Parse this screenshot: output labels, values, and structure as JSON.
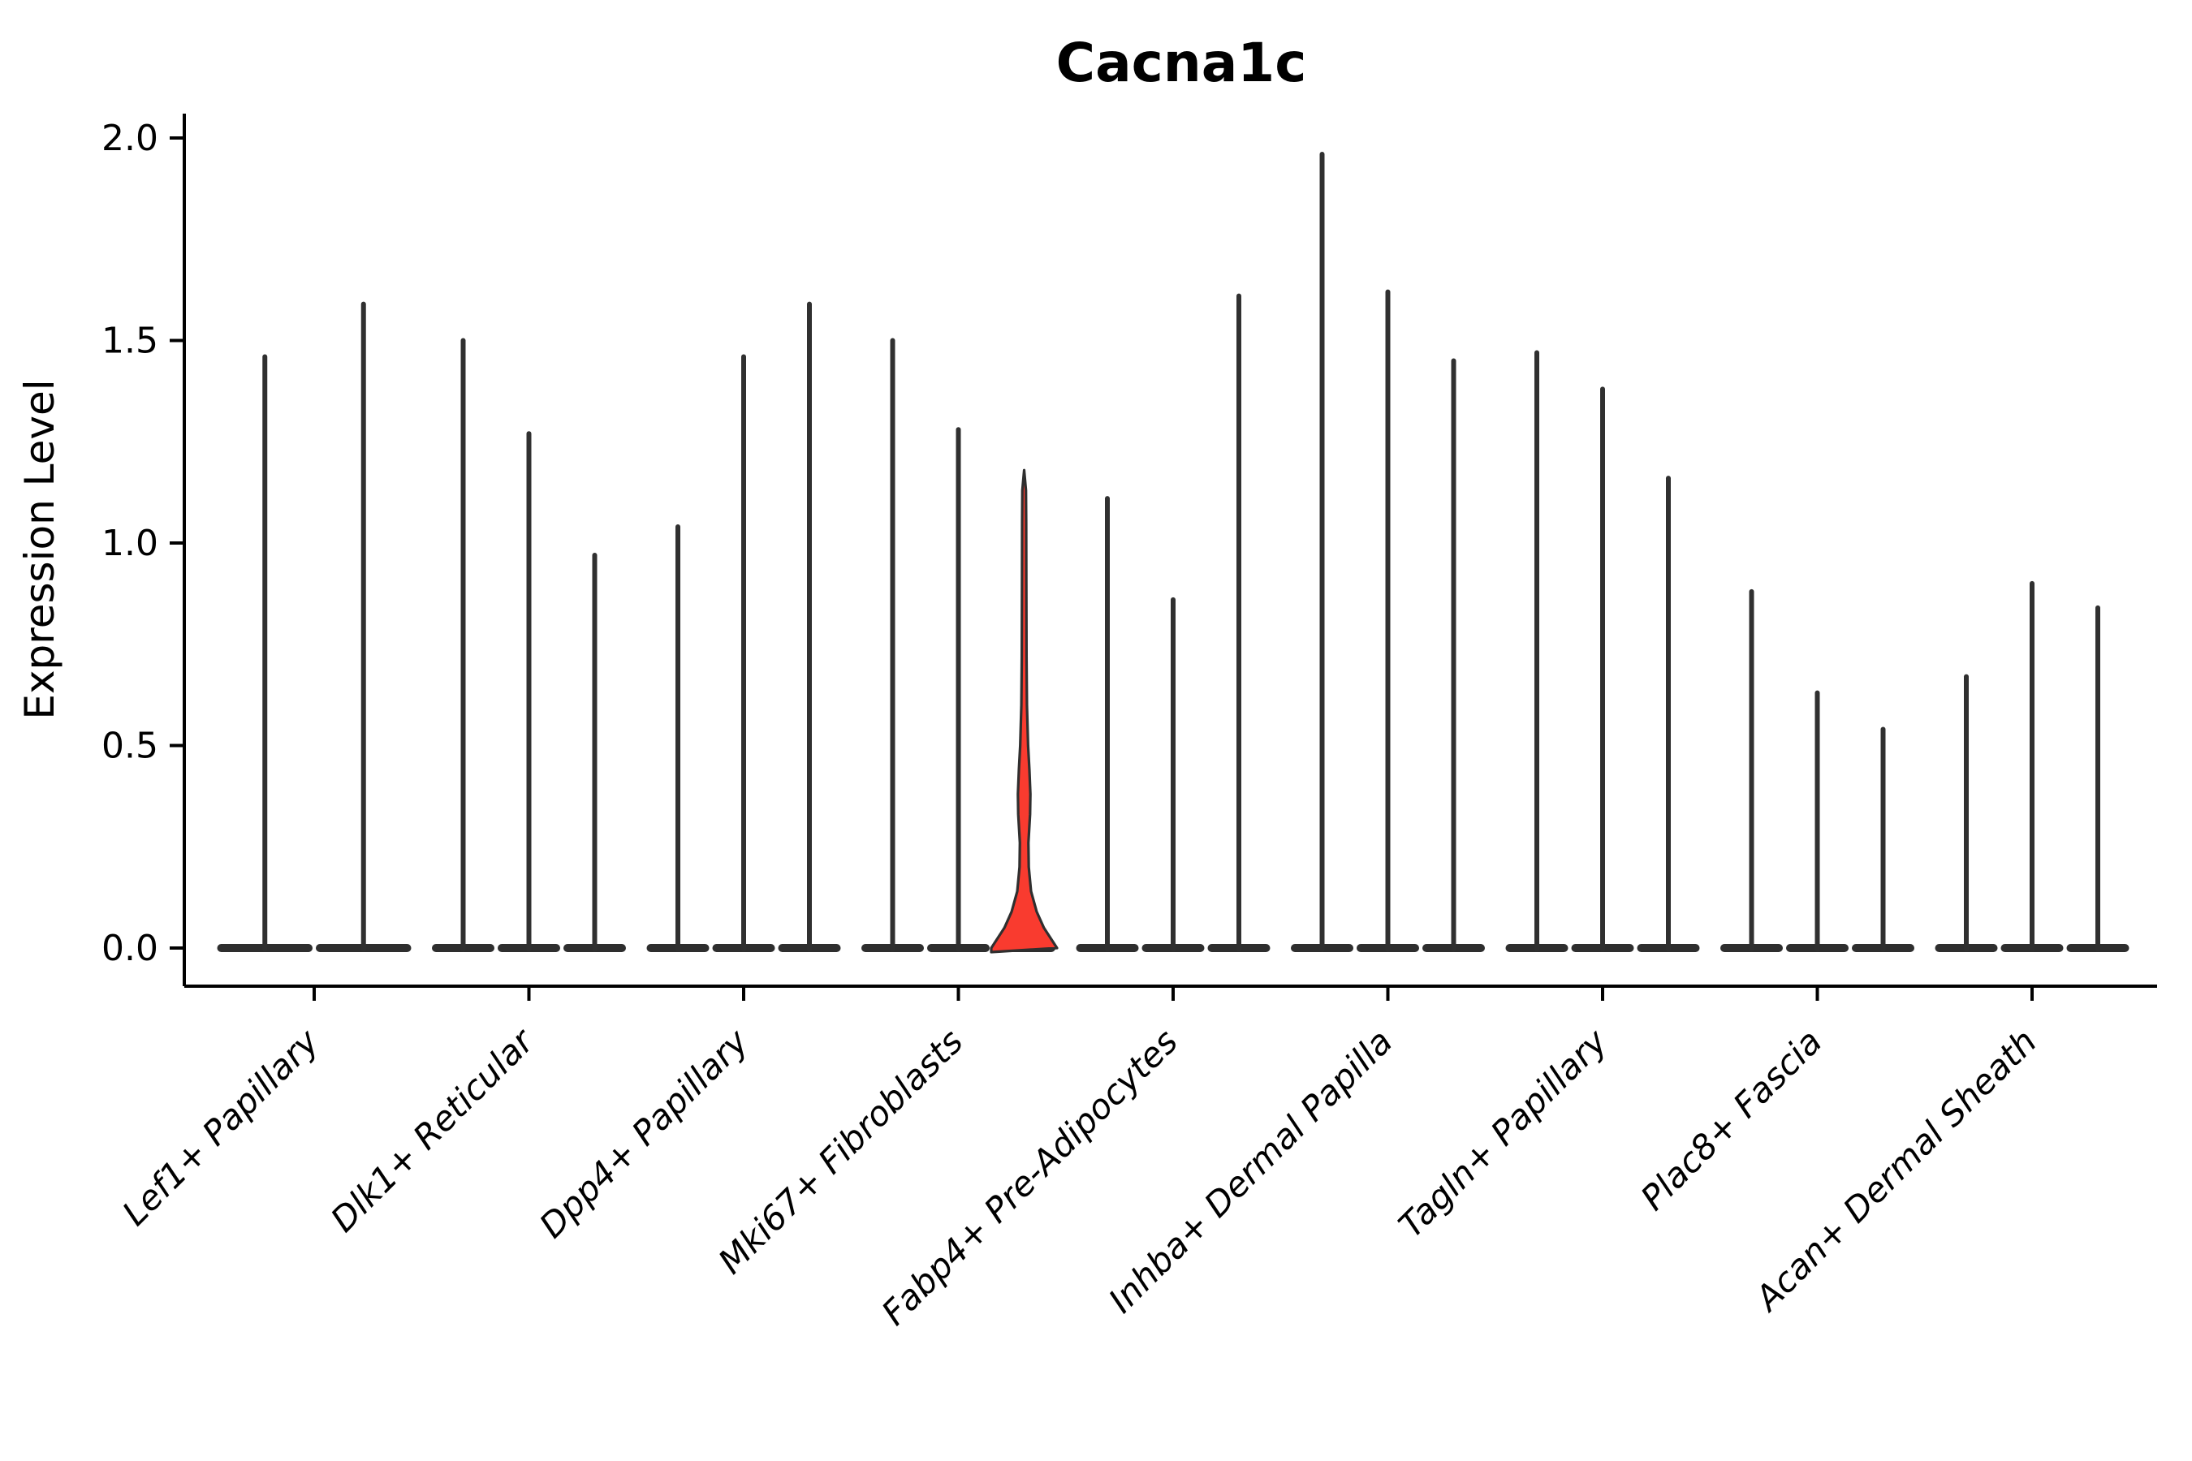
{
  "chart_data": {
    "type": "violin",
    "title": "Cacna1c",
    "xlabel": "",
    "ylabel": "Expression Level",
    "ytick_labels": [
      "0.0",
      "0.5",
      "1.0",
      "1.5",
      "2.0"
    ],
    "ytick_values": [
      0.0,
      0.5,
      1.0,
      1.5,
      2.0
    ],
    "ylim": [
      -0.1,
      2.06
    ],
    "grid": false,
    "legend": "none",
    "categories": [
      "Lef1+ Papillary",
      "Dlk1+ Reticular",
      "Dpp4+ Papillary",
      "Mki67+ Fibroblasts",
      "Fabp4+ Pre-Adipocytes",
      "Inhba+ Dermal Papilla",
      "Tagln+ Papillary",
      "Plac8+ Fascia",
      "Acan+ Dermal Sheath"
    ],
    "groups": [
      {
        "category": "Lef1+ Papillary",
        "violin_max": [
          1.46,
          1.59
        ]
      },
      {
        "category": "Dlk1+ Reticular",
        "violin_max": [
          1.5,
          1.27,
          0.97
        ]
      },
      {
        "category": "Dpp4+ Papillary",
        "violin_max": [
          1.04,
          1.46,
          1.59
        ]
      },
      {
        "category": "Mki67+ Fibroblasts",
        "violin_max": [
          1.5,
          1.28,
          1.18
        ],
        "highlighted_violin_index": 2
      },
      {
        "category": "Fabp4+ Pre-Adipocytes",
        "violin_max": [
          1.11,
          0.86,
          1.61
        ]
      },
      {
        "category": "Inhba+ Dermal Papilla",
        "violin_max": [
          1.96,
          1.62,
          1.45
        ]
      },
      {
        "category": "Tagln+ Papillary",
        "violin_max": [
          1.47,
          1.38,
          1.16
        ]
      },
      {
        "category": "Plac8+ Fascia",
        "violin_max": [
          0.88,
          0.63,
          0.54
        ]
      },
      {
        "category": "Acan+ Dermal Sheath",
        "violin_max": [
          0.67,
          0.9,
          0.84
        ]
      }
    ],
    "highlighted_violin": {
      "category": "Mki67+ Fibroblasts",
      "max": 1.18,
      "density_profile": [
        [
          0.0,
          1.0
        ],
        [
          0.05,
          0.6
        ],
        [
          0.09,
          0.38
        ],
        [
          0.14,
          0.21
        ],
        [
          0.2,
          0.14
        ],
        [
          0.26,
          0.13
        ],
        [
          0.33,
          0.18
        ],
        [
          0.38,
          0.19
        ],
        [
          0.44,
          0.16
        ],
        [
          0.5,
          0.12
        ],
        [
          0.6,
          0.085
        ],
        [
          0.72,
          0.072
        ],
        [
          0.9,
          0.066
        ],
        [
          1.05,
          0.062
        ],
        [
          1.13,
          0.055
        ],
        [
          1.18,
          0.0
        ]
      ]
    },
    "note": "All violins except the highlighted one collapse to a flat base at 0 with a thin density spike up to their max value.",
    "colors": {
      "spike": "#303030",
      "base_bar": "#2e2e2e",
      "highlight_fill": "#f93b2f",
      "highlight_outline": "#2f2f2f",
      "axis": "#000000",
      "text": "#000000",
      "background": "#ffffff"
    }
  }
}
